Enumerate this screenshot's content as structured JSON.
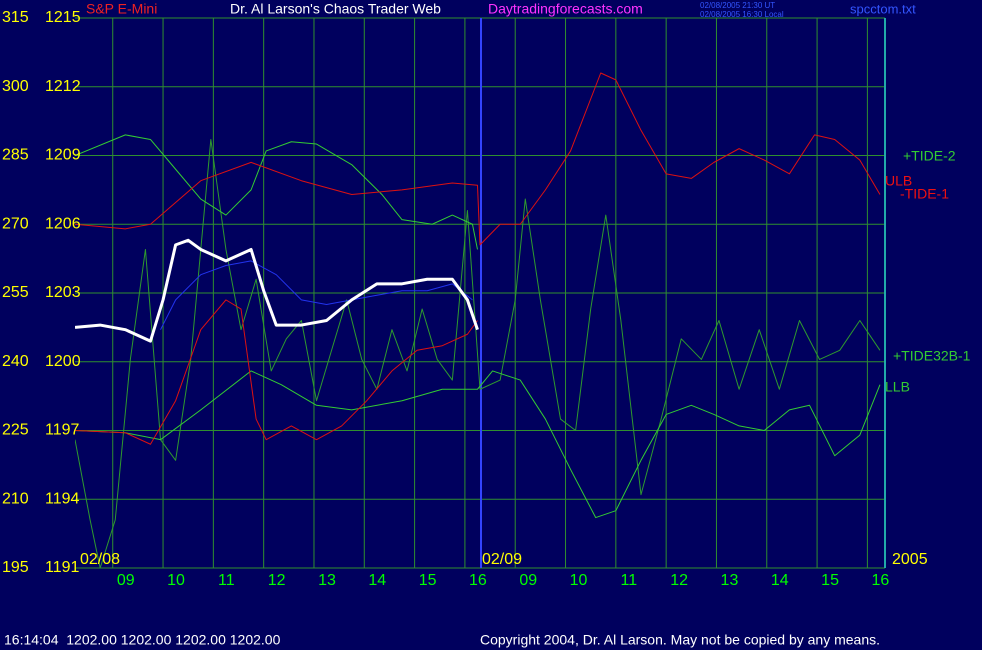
{
  "chart_data": {
    "type": "line",
    "title": "Dr. Al Larson's Chaos Trader Web",
    "site": "Daytradingforecasts.com",
    "timestamps": [
      "02/08/2005 21:30 UT",
      "02/08/2005 16:30 Local"
    ],
    "file": "spcctom.txt",
    "date_labels": [
      "02/08",
      "02/09",
      "2005"
    ],
    "status": "16:14:04  1202.00 1202.00 1202.00 1202.00",
    "copyright": "Copyright 2004, Dr. Al Larson. May not be copied by any means.",
    "line_labels": [
      {
        "text": "+TIDE-2",
        "color": "#33cc33"
      },
      {
        "text": "ULB",
        "color": "#ee1111"
      },
      {
        "text": "-TIDE-1",
        "color": "#ee1111"
      },
      {
        "text": "+TIDE32B-1",
        "color": "#33cc33"
      },
      {
        "text": "LLB",
        "color": "#33cc33"
      }
    ],
    "xlim": [
      0,
      16.1
    ],
    "xticks": [
      {
        "value": 0.75,
        "label": "09"
      },
      {
        "value": 1.75,
        "label": "10"
      },
      {
        "value": 2.75,
        "label": "11"
      },
      {
        "value": 3.75,
        "label": "12"
      },
      {
        "value": 4.75,
        "label": "13"
      },
      {
        "value": 5.75,
        "label": "14"
      },
      {
        "value": 6.75,
        "label": "15"
      },
      {
        "value": 7.75,
        "label": "16"
      },
      {
        "value": 8.75,
        "label": "09"
      },
      {
        "value": 9.75,
        "label": "10"
      },
      {
        "value": 10.75,
        "label": "11"
      },
      {
        "value": 11.75,
        "label": "12"
      },
      {
        "value": 12.75,
        "label": "13"
      },
      {
        "value": 13.75,
        "label": "14"
      },
      {
        "value": 14.75,
        "label": "15"
      },
      {
        "value": 15.75,
        "label": "16"
      }
    ],
    "ylim": [
      1191,
      1215
    ],
    "yticks": [
      1191,
      1194,
      1197,
      1200,
      1203,
      1206,
      1209,
      1212,
      1215
    ],
    "y2lim": [
      195,
      315
    ],
    "y2ticks": [
      195,
      210,
      225,
      240,
      255,
      270,
      285,
      300,
      315
    ],
    "grid": true,
    "series": [
      {
        "name": "S&P E-Mini",
        "color": "#ffffff",
        "width": 3,
        "x": [
          0,
          0.5,
          1,
          1.5,
          1.75,
          2,
          2.25,
          2.5,
          3,
          3.5,
          3.75,
          4,
          4.5,
          5,
          5.5,
          6,
          6.5,
          7,
          7.5,
          7.8,
          8
        ],
        "values": [
          1201.5,
          1201.6,
          1201.4,
          1200.9,
          1202.7,
          1205.1,
          1205.3,
          1204.9,
          1204.4,
          1204.9,
          1203.1,
          1201.6,
          1201.6,
          1201.8,
          1202.7,
          1203.4,
          1203.4,
          1203.6,
          1203.6,
          1202.7,
          1201.4
        ]
      },
      {
        "color": "#dd1111",
        "width": 1,
        "x": [
          0,
          1,
          1.5,
          2.5,
          3.5,
          4.5,
          5.5,
          6.5,
          7.5,
          8,
          8.05,
          8.45,
          8.85,
          9.35,
          9.85,
          10.45,
          10.75,
          11.25,
          11.75,
          12.25,
          12.7,
          13.2,
          13.7,
          14.2,
          14.7,
          15.1,
          15.6,
          16
        ],
        "values": [
          1206.0,
          1205.8,
          1206.0,
          1207.9,
          1208.7,
          1207.9,
          1207.3,
          1207.5,
          1207.8,
          1207.7,
          1205.1,
          1206.0,
          1206.0,
          1207.5,
          1209.2,
          1212.6,
          1212.3,
          1210.1,
          1208.2,
          1208.0,
          1208.7,
          1209.3,
          1208.8,
          1208.2,
          1209.9,
          1209.7,
          1208.8,
          1207.3
        ]
      },
      {
        "color": "#dd1111",
        "width": 1,
        "x": [
          0,
          1,
          1.5,
          2,
          2.5,
          3,
          3.3,
          3.6,
          3.8,
          4.3,
          4.8,
          5.3,
          5.8,
          6.3,
          6.8,
          7.3,
          7.8,
          8
        ],
        "values": [
          1197.0,
          1196.9,
          1196.4,
          1198.3,
          1201.4,
          1202.7,
          1202.3,
          1197.5,
          1196.6,
          1197.2,
          1196.6,
          1197.2,
          1198.3,
          1199.6,
          1200.5,
          1200.7,
          1201.2,
          1201.8
        ]
      },
      {
        "color": "#33cc33",
        "width": 1,
        "x": [
          0,
          1,
          1.5,
          2,
          2.5,
          3,
          3.5,
          3.8,
          4.3,
          4.8,
          5.5,
          6.1,
          6.5,
          7.1,
          7.5,
          7.9,
          8
        ],
        "values": [
          1209.0,
          1209.9,
          1209.7,
          1208.4,
          1207.1,
          1206.4,
          1207.5,
          1209.2,
          1209.6,
          1209.5,
          1208.6,
          1207.3,
          1206.2,
          1206.0,
          1206.4,
          1206.0,
          1204.9
        ]
      },
      {
        "color": "#33cc33",
        "width": 1,
        "x": [
          0,
          1,
          1.7,
          2.5,
          3.5,
          4.1,
          4.8,
          5.5,
          6.5,
          7.3,
          8,
          8.3,
          8.85,
          9.35,
          9.85,
          10.35,
          10.75,
          11.25,
          11.75,
          12.25,
          12.7,
          13.2,
          13.7,
          14.2,
          14.6,
          15.1,
          15.6,
          16
        ],
        "values": [
          1197.0,
          1196.9,
          1196.6,
          1197.9,
          1199.6,
          1199.0,
          1198.1,
          1197.9,
          1198.3,
          1198.8,
          1198.8,
          1199.6,
          1199.2,
          1197.5,
          1195.3,
          1193.2,
          1193.5,
          1195.7,
          1197.7,
          1198.1,
          1197.7,
          1197.2,
          1197.0,
          1197.9,
          1198.1,
          1195.9,
          1196.8,
          1199.0
        ]
      },
      {
        "color": "#2233ee",
        "width": 1,
        "x": [
          1.7,
          2,
          2.5,
          3,
          3.5,
          4,
          4.5,
          5,
          5.5,
          6,
          6.5,
          7,
          7.5,
          7.9
        ],
        "values": [
          1201.4,
          1202.7,
          1203.8,
          1204.2,
          1204.4,
          1203.8,
          1202.7,
          1202.5,
          1202.7,
          1202.9,
          1203.1,
          1203.1,
          1203.4,
          1202.7
        ]
      },
      {
        "color": "#2e9a2e",
        "width": 1,
        "x": [
          0,
          0.3,
          0.5,
          0.8,
          1.1,
          1.4,
          1.7,
          2,
          2.3,
          2.7,
          3,
          3.3,
          3.6,
          3.9,
          4.2,
          4.5,
          4.8,
          5.1,
          5.4,
          5.7,
          6,
          6.3,
          6.6,
          6.9,
          7.2,
          7.5,
          7.8,
          8.05,
          8.45,
          8.75,
          8.95,
          9.25,
          9.65,
          9.95,
          10.25,
          10.55,
          10.85,
          11.25,
          11.65,
          12.05,
          12.45,
          12.8,
          13.2,
          13.6,
          14,
          14.4,
          14.8,
          15.2,
          15.6,
          16
        ],
        "values": [
          1196.6,
          1193.1,
          1191.0,
          1193.1,
          1200.1,
          1204.9,
          1196.6,
          1195.7,
          1200.1,
          1209.7,
          1204.9,
          1201.4,
          1203.6,
          1199.6,
          1201.0,
          1201.8,
          1198.3,
          1200.5,
          1202.7,
          1200.1,
          1198.8,
          1201.4,
          1199.6,
          1202.3,
          1200.1,
          1199.2,
          1206.6,
          1198.8,
          1199.2,
          1202.7,
          1207.1,
          1202.7,
          1197.5,
          1197.0,
          1202.3,
          1206.4,
          1201.8,
          1194.2,
          1197.5,
          1201.0,
          1200.1,
          1201.8,
          1198.8,
          1201.4,
          1198.8,
          1201.8,
          1200.1,
          1200.5,
          1201.8,
          1200.5
        ]
      }
    ]
  }
}
